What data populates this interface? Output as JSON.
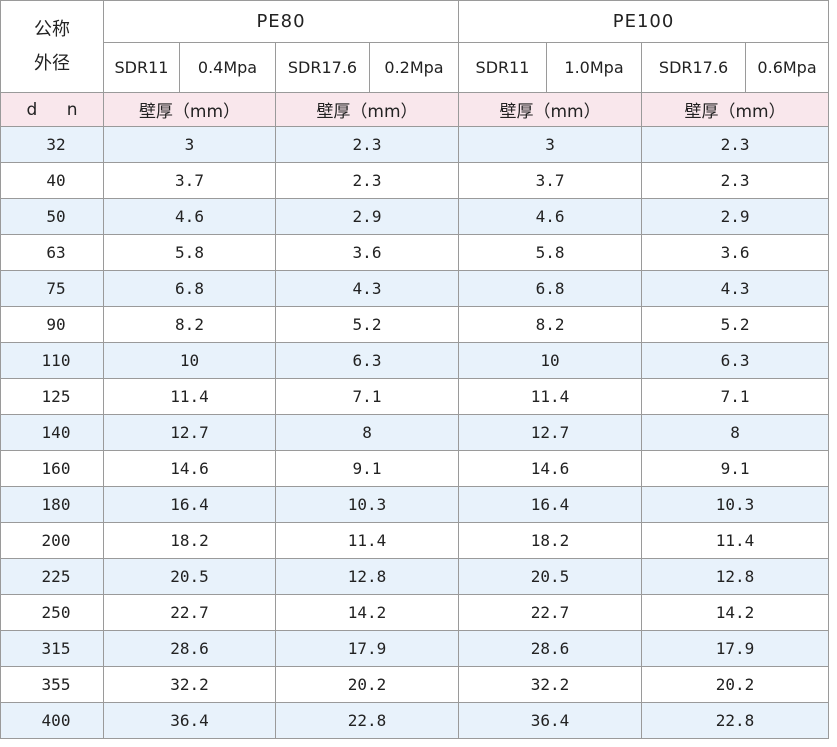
{
  "header": {
    "corner_line1": "公称",
    "corner_line2": "外径",
    "groups": [
      "PE80",
      "PE100"
    ],
    "sub": [
      "SDR11",
      "0.4Mpa",
      "SDR17.6",
      "0.2Mpa",
      "SDR11",
      "1.0Mpa",
      "SDR17.6",
      "0.6Mpa"
    ],
    "unit_dn": "d n",
    "unit_labels": [
      "壁厚（mm）",
      "壁厚（mm）",
      "壁厚（mm）",
      "壁厚（mm）"
    ]
  },
  "rows": [
    {
      "dn": "32",
      "v": [
        "3",
        "2.3",
        "3",
        "2.3"
      ]
    },
    {
      "dn": "40",
      "v": [
        "3.7",
        "2.3",
        "3.7",
        "2.3"
      ]
    },
    {
      "dn": "50",
      "v": [
        "4.6",
        "2.9",
        "4.6",
        "2.9"
      ]
    },
    {
      "dn": "63",
      "v": [
        "5.8",
        "3.6",
        "5.8",
        "3.6"
      ]
    },
    {
      "dn": "75",
      "v": [
        "6.8",
        "4.3",
        "6.8",
        "4.3"
      ]
    },
    {
      "dn": "90",
      "v": [
        "8.2",
        "5.2",
        "8.2",
        "5.2"
      ]
    },
    {
      "dn": "110",
      "v": [
        "10",
        "6.3",
        "10",
        "6.3"
      ]
    },
    {
      "dn": "125",
      "v": [
        "11.4",
        "7.1",
        "11.4",
        "7.1"
      ]
    },
    {
      "dn": "140",
      "v": [
        "12.7",
        "8",
        "12.7",
        "8"
      ]
    },
    {
      "dn": "160",
      "v": [
        "14.6",
        "9.1",
        "14.6",
        "9.1"
      ]
    },
    {
      "dn": "180",
      "v": [
        "16.4",
        "10.3",
        "16.4",
        "10.3"
      ]
    },
    {
      "dn": "200",
      "v": [
        "18.2",
        "11.4",
        "18.2",
        "11.4"
      ]
    },
    {
      "dn": "225",
      "v": [
        "20.5",
        "12.8",
        "20.5",
        "12.8"
      ]
    },
    {
      "dn": "250",
      "v": [
        "22.7",
        "14.2",
        "22.7",
        "14.2"
      ]
    },
    {
      "dn": "315",
      "v": [
        "28.6",
        "17.9",
        "28.6",
        "17.9"
      ]
    },
    {
      "dn": "355",
      "v": [
        "32.2",
        "20.2",
        "32.2",
        "20.2"
      ]
    },
    {
      "dn": "400",
      "v": [
        "36.4",
        "22.8",
        "36.4",
        "22.8"
      ]
    }
  ]
}
